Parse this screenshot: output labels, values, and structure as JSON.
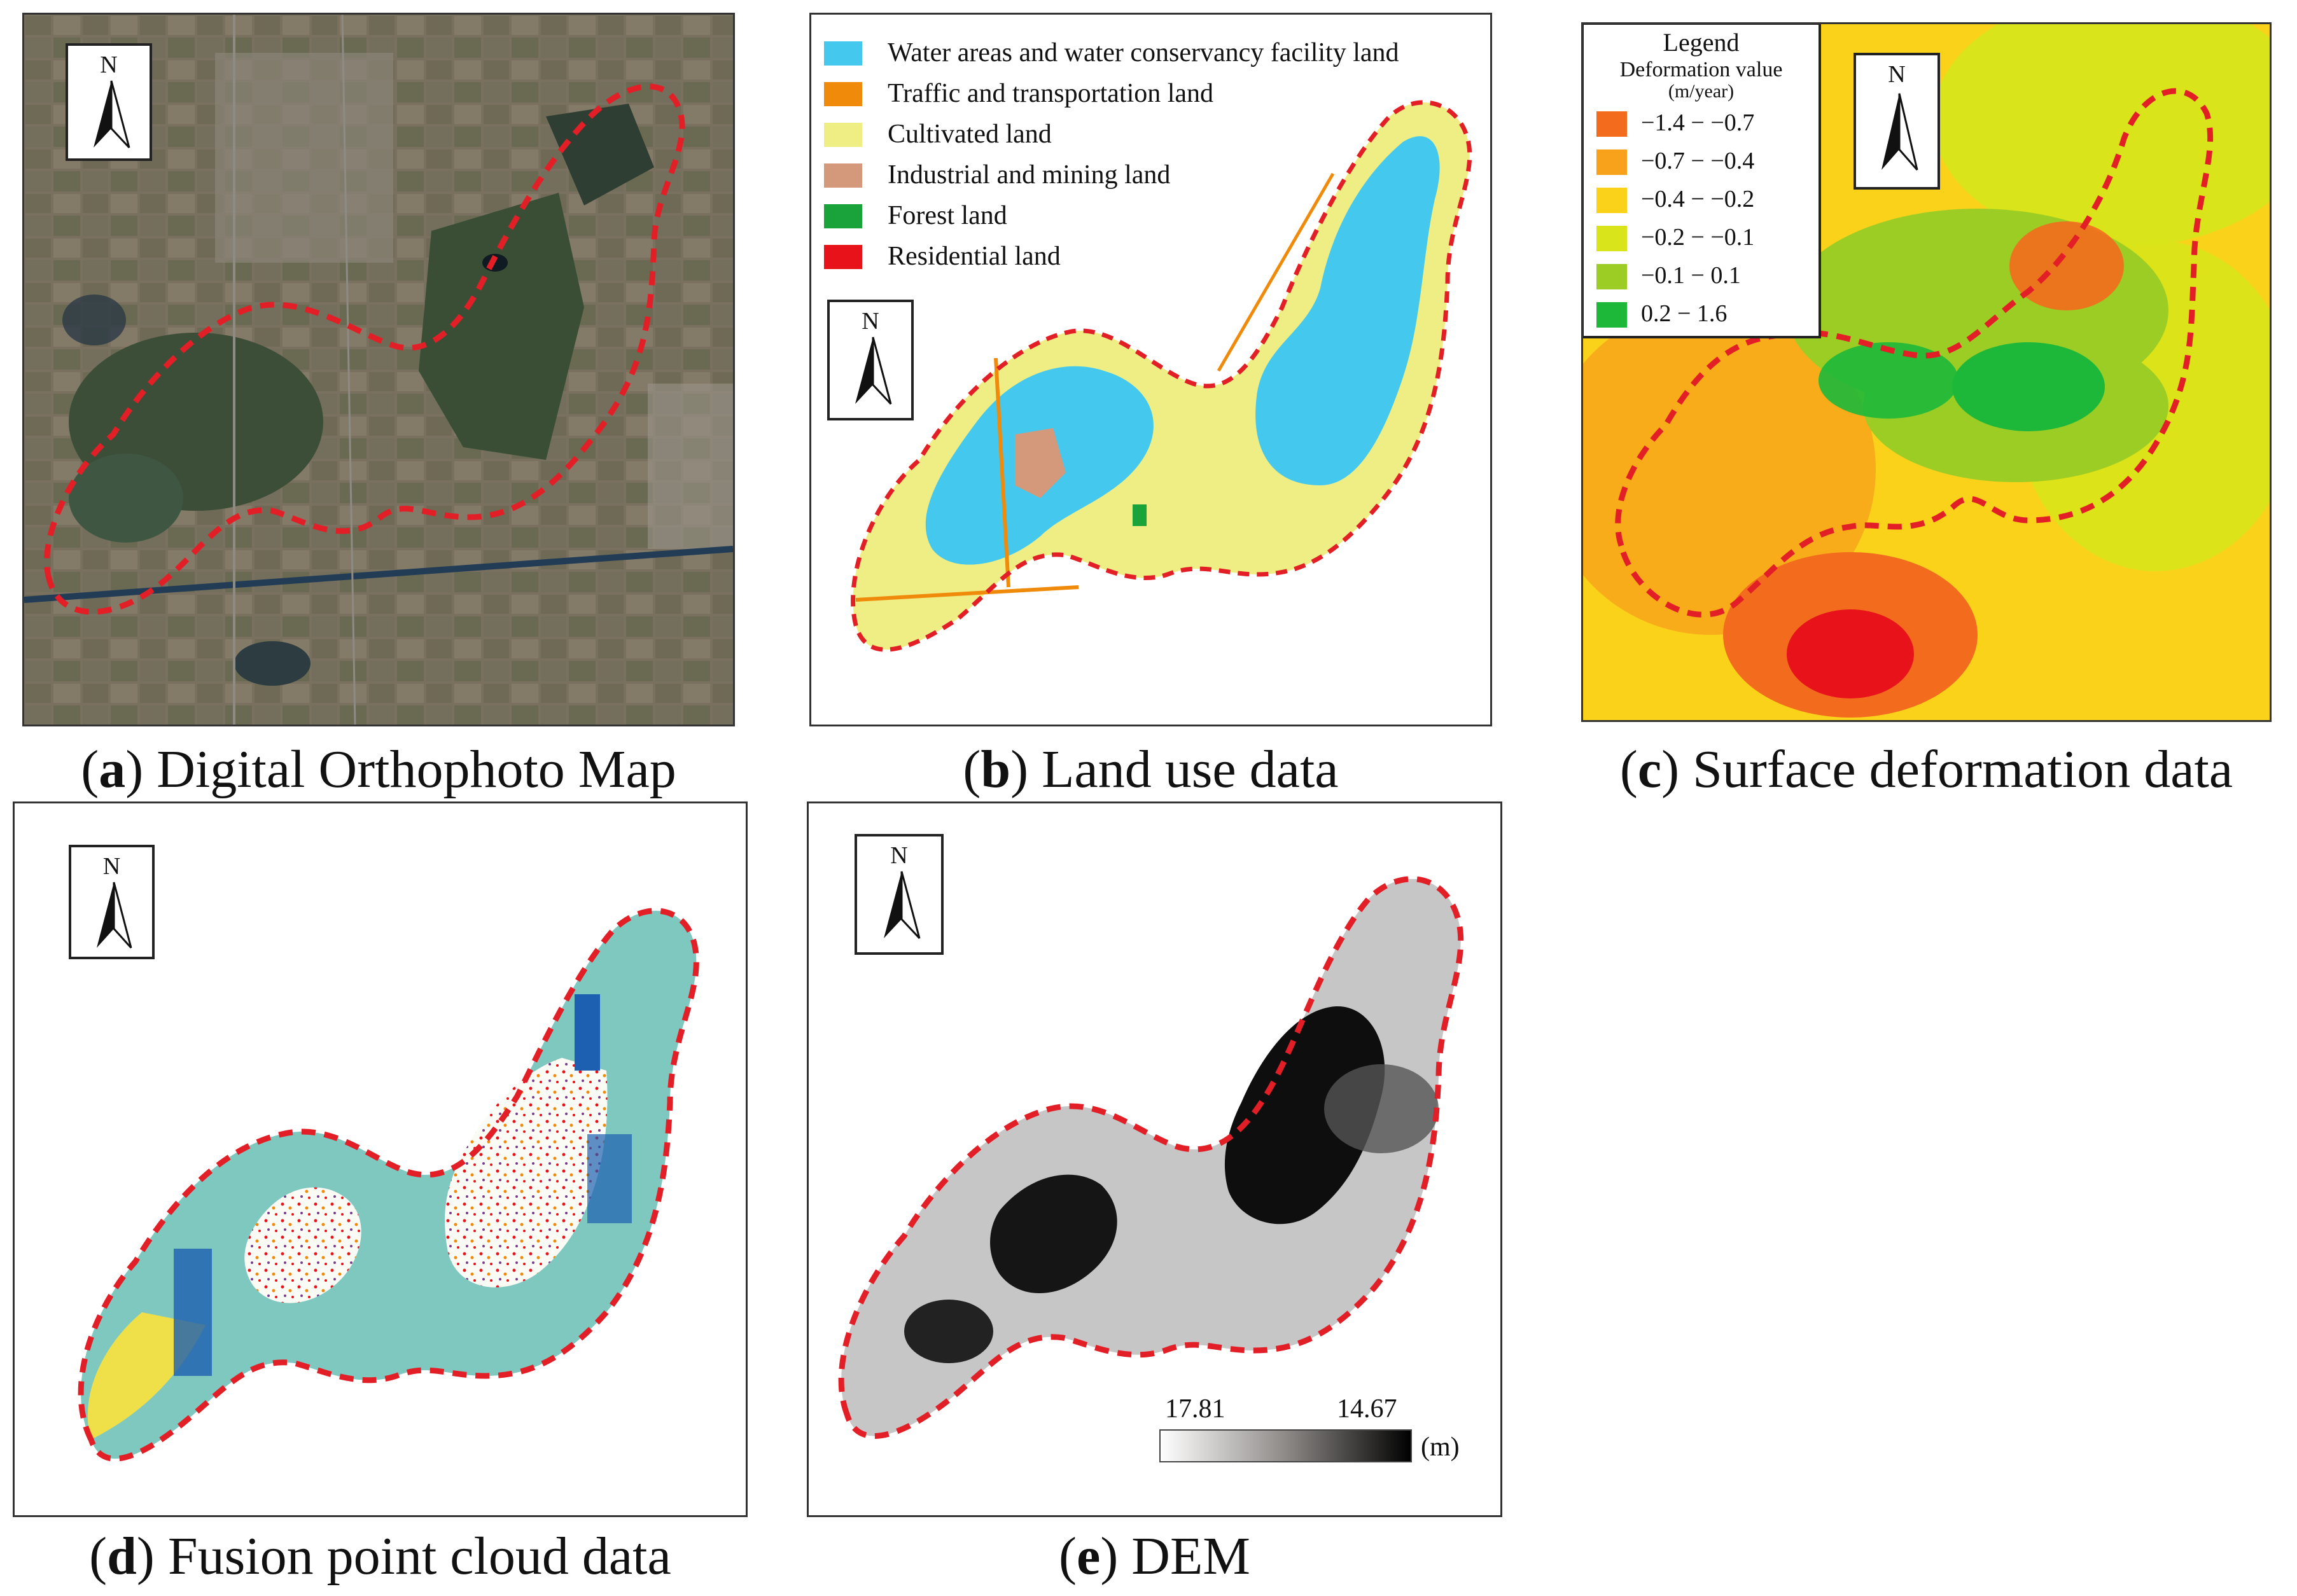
{
  "panels": {
    "a": {
      "letter": "a",
      "caption": "Digital Orthophoto Map"
    },
    "b": {
      "letter": "b",
      "caption": "Land use data"
    },
    "c": {
      "letter": "c",
      "caption": "Surface deformation data"
    },
    "d": {
      "letter": "d",
      "caption": "Fusion point cloud data"
    },
    "e": {
      "letter": "e",
      "caption": "DEM"
    }
  },
  "north_label": "N",
  "boundary_color": "#e21f26",
  "land_use_legend": [
    {
      "label": "Water areas and water conservancy facility land",
      "color": "#45c8ee"
    },
    {
      "label": "Traffic and transportation land",
      "color": "#f08a0b"
    },
    {
      "label": "Cultivated land",
      "color": "#efee84"
    },
    {
      "label": "Industrial and mining land",
      "color": "#d4997a"
    },
    {
      "label": "Forest land",
      "color": "#1aa23b"
    },
    {
      "label": "Residential land",
      "color": "#e8121b"
    }
  ],
  "deformation_legend": {
    "title": "Legend",
    "subtitle": "Deformation value",
    "unit": "(m/year)",
    "classes": [
      {
        "label": "−1.4 − −0.7",
        "color": "#f36b1d"
      },
      {
        "label": "−0.7 − −0.4",
        "color": "#f7a21a"
      },
      {
        "label": "−0.4 − −0.2",
        "color": "#fad21a"
      },
      {
        "label": "−0.2 − −0.1",
        "color": "#d9e41a"
      },
      {
        "label": "−0.1 −   0.1",
        "color": "#9ccd25"
      },
      {
        "label": "0.2 − 1.6",
        "color": "#1db83a"
      }
    ]
  },
  "dem_scale": {
    "high": "17.81",
    "low": "14.67",
    "unit": "(m)"
  }
}
